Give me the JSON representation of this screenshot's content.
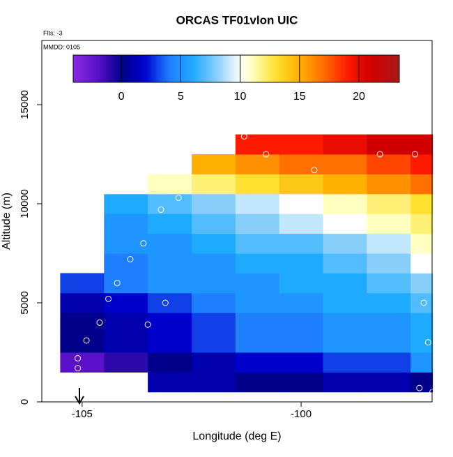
{
  "chart_data": {
    "type": "heatmap",
    "title": "ORCAS TF01vlon UIC",
    "subtitle": "Flts: -3",
    "annotation": "MMDD: 0105",
    "x_label": "Longitude (deg E)",
    "y_label": "Altitude (m)",
    "xlim": [
      -105.92,
      -97.01
    ],
    "xticks": [
      -105,
      -100
    ],
    "ylim": [
      0,
      18240
    ],
    "yticks": [
      0,
      5000,
      10000,
      15000
    ],
    "x_edges": [
      -105.5,
      -104.5,
      -103.5,
      -102.5,
      -101.5,
      -100.5,
      -99.5,
      -98.5,
      -97.5,
      -97.0
    ],
    "y_edges": [
      500,
      1500,
      2500,
      3500,
      4500,
      5500,
      6500,
      7500,
      8500,
      9500,
      10500,
      11500,
      12500,
      13500
    ],
    "z": [
      [
        null,
        null,
        1,
        1,
        0,
        0,
        1,
        1,
        0
      ],
      [
        -2,
        -1,
        0,
        1,
        2,
        2,
        3,
        3,
        5
      ],
      [
        0,
        1,
        2,
        3,
        4,
        4,
        5,
        5,
        6
      ],
      [
        0,
        1,
        2,
        3,
        4,
        4,
        5,
        5,
        6
      ],
      [
        1,
        2,
        3,
        4,
        5,
        5,
        6,
        6,
        7
      ],
      [
        3,
        4,
        5,
        5,
        5,
        6,
        6,
        7,
        8
      ],
      [
        null,
        4,
        5,
        5,
        6,
        6,
        7,
        8,
        10
      ],
      [
        null,
        5,
        5,
        6,
        7,
        7,
        8,
        9,
        11
      ],
      [
        null,
        5,
        6,
        7,
        8,
        9,
        10,
        11,
        12
      ],
      [
        null,
        6,
        7,
        8,
        9,
        10,
        11,
        12,
        13
      ],
      [
        null,
        10,
        11,
        12,
        13,
        14,
        15,
        16,
        17
      ],
      [
        null,
        null,
        null,
        15,
        16,
        17,
        17,
        18,
        19
      ],
      [
        null,
        null,
        null,
        null,
        19,
        19,
        20,
        21,
        21
      ]
    ],
    "points": {
      "x": [
        -105.1,
        -105.1,
        -104.9,
        -104.6,
        -104.4,
        -104.2,
        -103.9,
        -103.6,
        -103.2,
        -102.8,
        -101.3,
        -100.8,
        -99.7,
        -98.2,
        -97.4,
        -97.3,
        -97.2,
        -97.1,
        -97.3,
        -97.0,
        -103.1,
        -103.5
      ],
      "y": [
        2200,
        1700,
        3100,
        4000,
        5200,
        6000,
        7200,
        8000,
        9700,
        10300,
        13400,
        12500,
        11700,
        12500,
        12500,
        7700,
        5000,
        3000,
        700,
        500,
        5000,
        3900
      ]
    },
    "colorbar": {
      "lim": [
        -4.05,
        23.4
      ],
      "ticks": [
        0,
        5,
        10,
        15,
        20
      ]
    }
  }
}
